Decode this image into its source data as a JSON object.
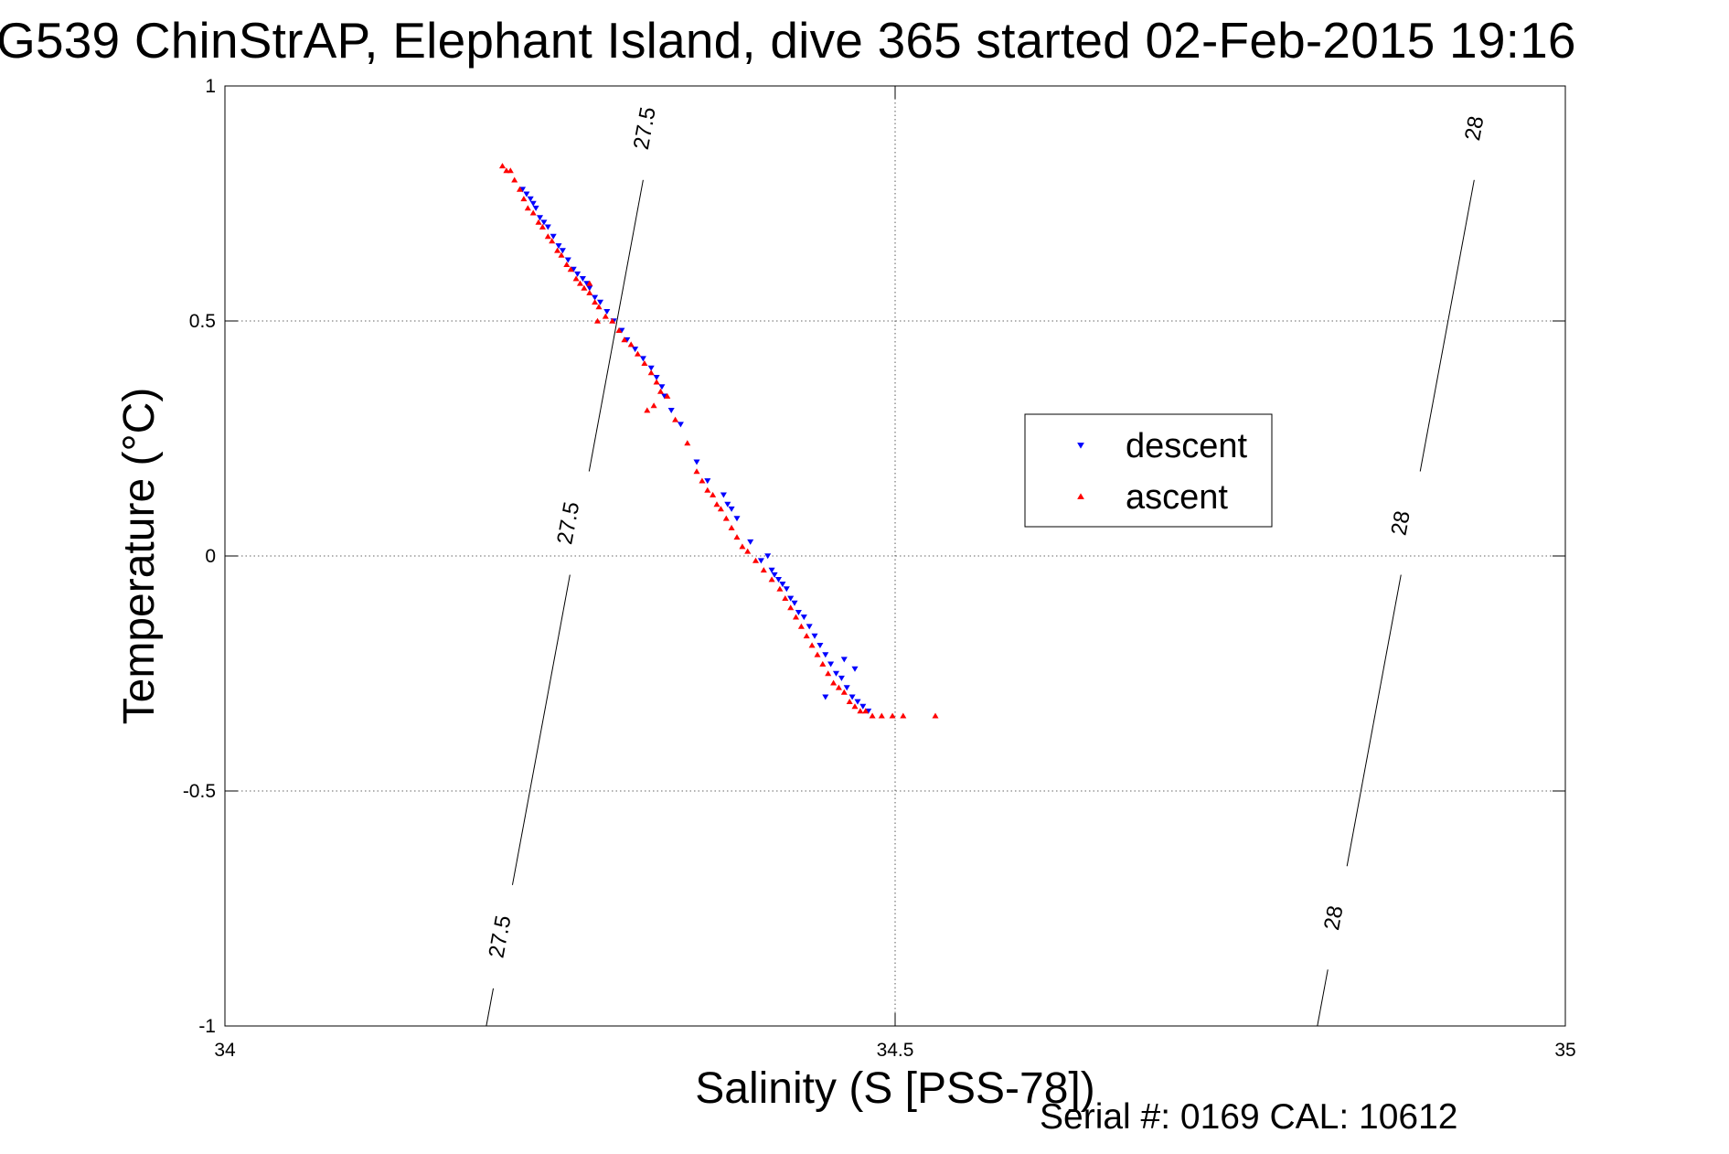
{
  "chart_data": {
    "type": "scatter",
    "title": "G539 ChinStrAP, Elephant Island, dive 365 started 02-Feb-2015 19:16",
    "xlabel": "Salinity (S [PSS-78])",
    "ylabel": "Temperature (°C)",
    "xlim": [
      34,
      35
    ],
    "ylim": [
      -1,
      1
    ],
    "xticks": [
      34,
      34.5,
      35
    ],
    "xtick_labels": [
      "34",
      "34.5",
      "35"
    ],
    "yticks": [
      -1,
      -0.5,
      0,
      0.5,
      1
    ],
    "ytick_labels": [
      "-1",
      "-0.5",
      "0",
      "0.5",
      "1"
    ],
    "grid": true,
    "legend_position": "center-right",
    "series": [
      {
        "name": "descent",
        "color": "#0000ff",
        "marker": "triangle-down",
        "points": [
          [
            34.222,
            0.78
          ],
          [
            34.225,
            0.77
          ],
          [
            34.228,
            0.76
          ],
          [
            34.23,
            0.75
          ],
          [
            34.232,
            0.74
          ],
          [
            34.235,
            0.72
          ],
          [
            34.238,
            0.71
          ],
          [
            34.241,
            0.7
          ],
          [
            34.245,
            0.68
          ],
          [
            34.249,
            0.66
          ],
          [
            34.252,
            0.65
          ],
          [
            34.256,
            0.63
          ],
          [
            34.26,
            0.61
          ],
          [
            34.263,
            0.6
          ],
          [
            34.267,
            0.59
          ],
          [
            34.27,
            0.58
          ],
          [
            34.272,
            0.57
          ],
          [
            34.276,
            0.55
          ],
          [
            34.28,
            0.54
          ],
          [
            34.285,
            0.52
          ],
          [
            34.29,
            0.5
          ],
          [
            34.296,
            0.48
          ],
          [
            34.3,
            0.46
          ],
          [
            34.306,
            0.44
          ],
          [
            34.312,
            0.42
          ],
          [
            34.318,
            0.4
          ],
          [
            34.322,
            0.38
          ],
          [
            34.326,
            0.36
          ],
          [
            34.328,
            0.34
          ],
          [
            34.333,
            0.31
          ],
          [
            34.34,
            0.28
          ],
          [
            34.352,
            0.2
          ],
          [
            34.36,
            0.16
          ],
          [
            34.372,
            0.13
          ],
          [
            34.375,
            0.11
          ],
          [
            34.378,
            0.1
          ],
          [
            34.382,
            0.08
          ],
          [
            34.392,
            0.03
          ],
          [
            34.4,
            -0.01
          ],
          [
            34.405,
            0.0
          ],
          [
            34.408,
            -0.03
          ],
          [
            34.41,
            -0.04
          ],
          [
            34.413,
            -0.05
          ],
          [
            34.416,
            -0.06
          ],
          [
            34.419,
            -0.07
          ],
          [
            34.422,
            -0.09
          ],
          [
            34.425,
            -0.1
          ],
          [
            34.428,
            -0.12
          ],
          [
            34.432,
            -0.13
          ],
          [
            34.436,
            -0.15
          ],
          [
            34.44,
            -0.17
          ],
          [
            34.444,
            -0.19
          ],
          [
            34.448,
            -0.21
          ],
          [
            34.452,
            -0.23
          ],
          [
            34.456,
            -0.25
          ],
          [
            34.46,
            -0.26
          ],
          [
            34.464,
            -0.28
          ],
          [
            34.468,
            -0.3
          ],
          [
            34.472,
            -0.31
          ],
          [
            34.476,
            -0.32
          ],
          [
            34.48,
            -0.33
          ],
          [
            34.448,
            -0.3
          ],
          [
            34.462,
            -0.22
          ],
          [
            34.47,
            -0.24
          ]
        ]
      },
      {
        "name": "ascent",
        "color": "#ff0000",
        "marker": "triangle-up",
        "points": [
          [
            34.207,
            0.83
          ],
          [
            34.21,
            0.82
          ],
          [
            34.213,
            0.82
          ],
          [
            34.216,
            0.8
          ],
          [
            34.22,
            0.78
          ],
          [
            34.223,
            0.76
          ],
          [
            34.226,
            0.74
          ],
          [
            34.23,
            0.73
          ],
          [
            34.234,
            0.71
          ],
          [
            34.237,
            0.7
          ],
          [
            34.241,
            0.68
          ],
          [
            34.244,
            0.67
          ],
          [
            34.248,
            0.65
          ],
          [
            34.251,
            0.64
          ],
          [
            34.255,
            0.62
          ],
          [
            34.258,
            0.61
          ],
          [
            34.262,
            0.59
          ],
          [
            34.265,
            0.58
          ],
          [
            34.268,
            0.57
          ],
          [
            34.272,
            0.56
          ],
          [
            34.276,
            0.54
          ],
          [
            34.279,
            0.53
          ],
          [
            34.272,
            0.58
          ],
          [
            34.284,
            0.51
          ],
          [
            34.278,
            0.5
          ],
          [
            34.289,
            0.5
          ],
          [
            34.294,
            0.48
          ],
          [
            34.298,
            0.46
          ],
          [
            34.303,
            0.45
          ],
          [
            34.308,
            0.43
          ],
          [
            34.313,
            0.41
          ],
          [
            34.318,
            0.39
          ],
          [
            34.322,
            0.37
          ],
          [
            34.325,
            0.35
          ],
          [
            34.32,
            0.32
          ],
          [
            34.315,
            0.31
          ],
          [
            34.33,
            0.34
          ],
          [
            34.336,
            0.29
          ],
          [
            34.345,
            0.24
          ],
          [
            34.352,
            0.18
          ],
          [
            34.356,
            0.16
          ],
          [
            34.36,
            0.14
          ],
          [
            34.364,
            0.13
          ],
          [
            34.367,
            0.11
          ],
          [
            34.37,
            0.1
          ],
          [
            34.374,
            0.08
          ],
          [
            34.378,
            0.06
          ],
          [
            34.382,
            0.04
          ],
          [
            34.386,
            0.02
          ],
          [
            34.39,
            0.01
          ],
          [
            34.396,
            -0.01
          ],
          [
            34.402,
            -0.03
          ],
          [
            34.408,
            -0.05
          ],
          [
            34.414,
            -0.07
          ],
          [
            34.418,
            -0.09
          ],
          [
            34.422,
            -0.11
          ],
          [
            34.426,
            -0.13
          ],
          [
            34.43,
            -0.15
          ],
          [
            34.434,
            -0.17
          ],
          [
            34.438,
            -0.19
          ],
          [
            34.442,
            -0.21
          ],
          [
            34.446,
            -0.23
          ],
          [
            34.45,
            -0.25
          ],
          [
            34.454,
            -0.27
          ],
          [
            34.458,
            -0.28
          ],
          [
            34.462,
            -0.29
          ],
          [
            34.466,
            -0.31
          ],
          [
            34.47,
            -0.32
          ],
          [
            34.474,
            -0.33
          ],
          [
            34.478,
            -0.33
          ],
          [
            34.483,
            -0.34
          ],
          [
            34.49,
            -0.34
          ],
          [
            34.498,
            -0.34
          ],
          [
            34.506,
            -0.34
          ],
          [
            34.53,
            -0.34
          ]
        ]
      }
    ],
    "contours": [
      {
        "label": "27.5",
        "points": [
          [
            34.195,
            -1.0
          ],
          [
            34.325,
            1.0
          ]
        ],
        "label_at": [
          [
            34.205,
            -0.81
          ],
          [
            34.256,
            0.07
          ],
          [
            34.313,
            0.91
          ]
        ]
      },
      {
        "label": "28",
        "points": [
          [
            34.815,
            -1.0
          ],
          [
            34.945,
            1.0
          ]
        ],
        "label_at": [
          [
            34.827,
            -0.77
          ],
          [
            34.877,
            0.07
          ],
          [
            34.932,
            0.91
          ]
        ]
      }
    ]
  },
  "footer": {
    "serial": "Serial #: 0169 CAL: 10612"
  }
}
